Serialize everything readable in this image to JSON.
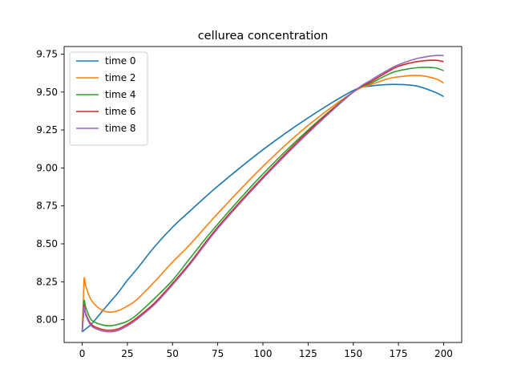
{
  "chart_data": {
    "type": "line",
    "title": "cellurea concentration",
    "xlabel": "",
    "ylabel": "",
    "xlim": [
      -10,
      210
    ],
    "ylim": [
      7.85,
      9.8
    ],
    "x_ticks": [
      0,
      25,
      50,
      75,
      100,
      125,
      150,
      175,
      200
    ],
    "y_ticks": [
      8.0,
      8.25,
      8.5,
      8.75,
      9.0,
      9.25,
      9.5,
      9.75
    ],
    "x_tick_labels": [
      "0",
      "25",
      "50",
      "75",
      "100",
      "125",
      "150",
      "175",
      "200"
    ],
    "y_tick_labels": [
      "8.00",
      "8.25",
      "8.50",
      "8.75",
      "9.00",
      "9.25",
      "9.50",
      "9.75"
    ],
    "grid": false,
    "legend_position": "top-left",
    "x": [
      0,
      1,
      2,
      5,
      10,
      15,
      20,
      25,
      30,
      40,
      50,
      60,
      75,
      100,
      125,
      150,
      160,
      170,
      175,
      185,
      195,
      200
    ],
    "series": [
      {
        "name": "time 0",
        "color": "#1f77b4",
        "values": [
          7.92,
          7.93,
          7.94,
          7.97,
          8.04,
          8.11,
          8.18,
          8.26,
          8.33,
          8.48,
          8.61,
          8.72,
          8.88,
          9.12,
          9.33,
          9.51,
          9.54,
          9.55,
          9.55,
          9.54,
          9.5,
          9.47
        ]
      },
      {
        "name": "time 2",
        "color": "#ff7f0e",
        "values": [
          7.92,
          8.26,
          8.22,
          8.13,
          8.07,
          8.05,
          8.06,
          8.09,
          8.13,
          8.25,
          8.38,
          8.5,
          8.7,
          9.01,
          9.28,
          9.5,
          9.55,
          9.59,
          9.6,
          9.61,
          9.59,
          9.56
        ]
      },
      {
        "name": "time 4",
        "color": "#2ca02c",
        "values": [
          7.92,
          8.12,
          8.08,
          8.0,
          7.97,
          7.96,
          7.97,
          7.99,
          8.03,
          8.14,
          8.26,
          8.41,
          8.63,
          8.96,
          9.25,
          9.5,
          9.56,
          9.62,
          9.64,
          9.66,
          9.66,
          9.64
        ]
      },
      {
        "name": "time 6",
        "color": "#d62728",
        "values": [
          7.92,
          8.09,
          8.04,
          7.97,
          7.94,
          7.93,
          7.94,
          7.97,
          8.01,
          8.11,
          8.24,
          8.38,
          8.61,
          8.94,
          9.24,
          9.5,
          9.57,
          9.64,
          9.67,
          9.7,
          9.71,
          9.7
        ]
      },
      {
        "name": "time 8",
        "color": "#9467bd",
        "values": [
          7.92,
          8.08,
          8.03,
          7.96,
          7.93,
          7.92,
          7.93,
          7.96,
          8.0,
          8.1,
          8.23,
          8.37,
          8.6,
          8.93,
          9.23,
          9.5,
          9.58,
          9.65,
          9.68,
          9.72,
          9.74,
          9.74
        ]
      }
    ]
  }
}
